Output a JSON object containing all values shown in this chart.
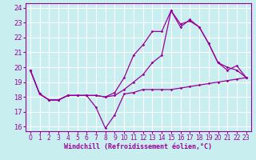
{
  "title": "",
  "xlabel": "Windchill (Refroidissement éolien,°C)",
  "ylabel": "",
  "bg_color": "#c8eef0",
  "grid_color": "#ffffff",
  "line_color": "#990099",
  "xlim": [
    -0.5,
    23.5
  ],
  "ylim": [
    15.7,
    24.3
  ],
  "yticks": [
    16,
    17,
    18,
    19,
    20,
    21,
    22,
    23,
    24
  ],
  "xticks": [
    0,
    1,
    2,
    3,
    4,
    5,
    6,
    7,
    8,
    9,
    10,
    11,
    12,
    13,
    14,
    15,
    16,
    17,
    18,
    19,
    20,
    21,
    22,
    23
  ],
  "series": [
    [
      19.8,
      18.2,
      17.8,
      17.8,
      18.1,
      18.1,
      18.1,
      17.3,
      15.9,
      16.8,
      18.2,
      18.3,
      18.5,
      18.5,
      18.5,
      18.5,
      18.6,
      18.7,
      18.8,
      18.9,
      19.0,
      19.1,
      19.2,
      19.3
    ],
    [
      19.8,
      18.2,
      17.8,
      17.8,
      18.1,
      18.1,
      18.1,
      18.1,
      18.0,
      18.1,
      18.5,
      19.0,
      19.5,
      20.3,
      20.8,
      23.8,
      22.9,
      23.1,
      22.7,
      21.6,
      20.3,
      19.8,
      20.1,
      19.3
    ],
    [
      19.8,
      18.2,
      17.8,
      17.8,
      18.1,
      18.1,
      18.1,
      18.1,
      18.0,
      18.3,
      19.3,
      20.8,
      21.5,
      22.4,
      22.4,
      23.8,
      22.7,
      23.2,
      22.7,
      21.6,
      20.3,
      20.0,
      19.8,
      19.3
    ]
  ]
}
